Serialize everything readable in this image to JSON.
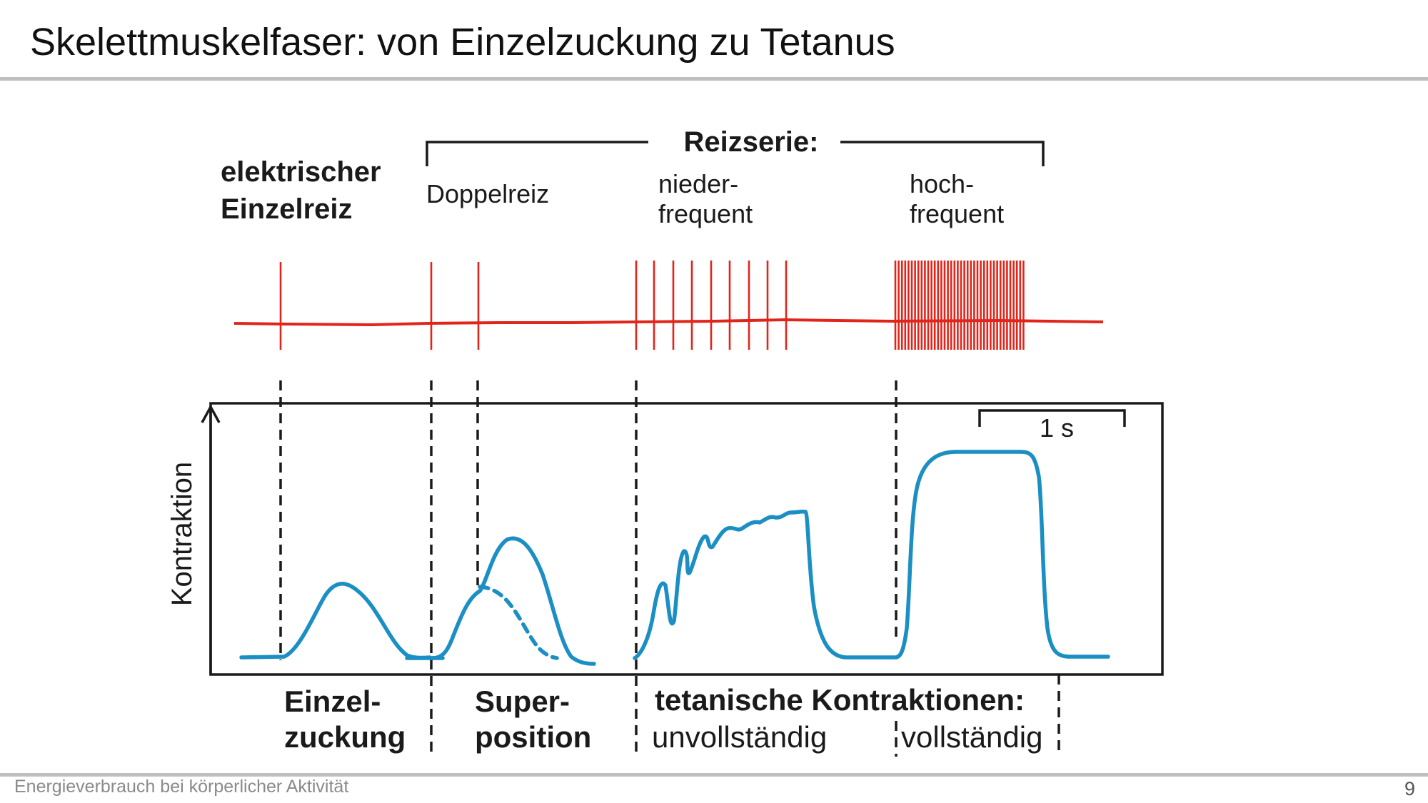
{
  "slide": {
    "title": "Skelettmuskelfaser:  von Einzelzuckung zu Tetanus",
    "footer": "Energieverbrauch bei körperlicher Aktivität",
    "page_number": "9"
  },
  "figure": {
    "header_labels": {
      "single_stimulus_line1": "elektrischer",
      "single_stimulus_line2": "Einzelreiz",
      "series": "Reizserie:",
      "double": "Doppelreiz",
      "low_line1": "nieder-",
      "low_line2": "frequent",
      "high_line1": "hoch-",
      "high_line2": "frequent"
    },
    "y_axis_label": "Kontraktion",
    "scale_bar_label": "1 s",
    "bottom_labels": {
      "twitch_line1": "Einzel-",
      "twitch_line2": "zuckung",
      "super_line1": "Super-",
      "super_line2": "position",
      "tetanic": "tetanische Kontraktionen:",
      "incomplete": "unvollständig",
      "complete": "vollständig"
    },
    "colors": {
      "stimulus": "#e1251b",
      "contraction": "#1b8fc4",
      "ink": "#1a1a1a"
    }
  }
}
